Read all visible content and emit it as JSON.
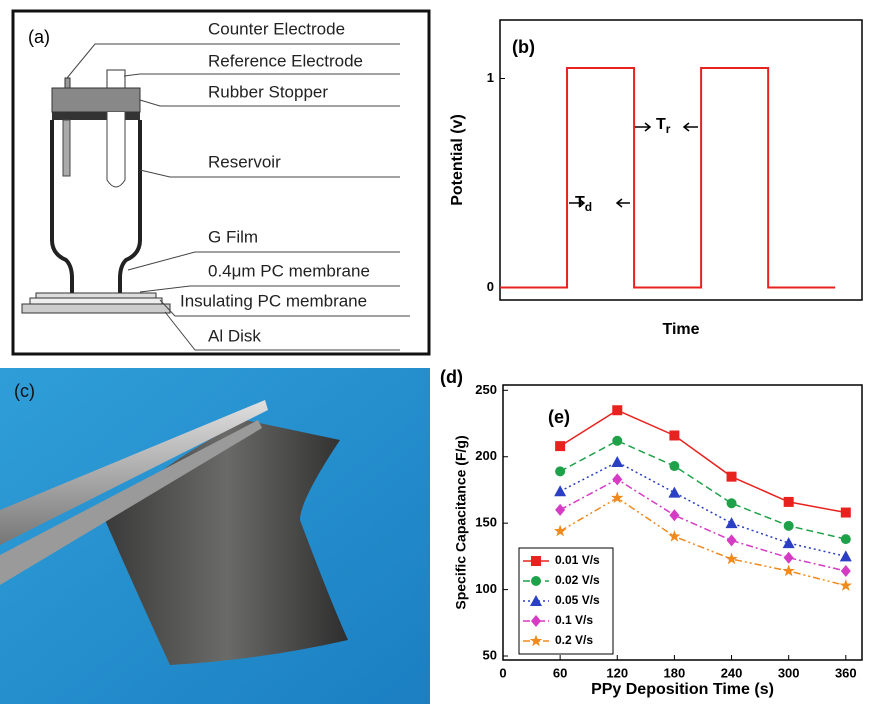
{
  "diagram": {
    "panel_label": "(a)",
    "labels": [
      "Counter Electrode",
      "Reference Electrode",
      "Rubber Stopper",
      "Reservoir",
      "G Film",
      "0.4μm PC membrane",
      "Insulating PC membrane",
      "Al Disk"
    ]
  },
  "photo": {
    "panel_label": "(c)"
  },
  "chart_data": [
    {
      "type": "line",
      "panel_label": "(b)",
      "xlabel": "Time",
      "ylabel": "Potential (v)",
      "xlim": [
        0,
        5.4
      ],
      "ylim": [
        -0.06,
        1.28
      ],
      "yticks": [
        0,
        1
      ],
      "annotations": [
        {
          "text": "T",
          "sub": "d"
        },
        {
          "text": "T",
          "sub": "r"
        }
      ],
      "x": [
        0,
        1,
        1,
        2,
        2,
        3,
        3,
        4,
        4,
        5
      ],
      "series": [
        {
          "color": "#e8231f",
          "values": [
            0,
            0,
            1.05,
            1.05,
            0,
            0,
            1.05,
            1.05,
            0,
            0
          ]
        }
      ]
    },
    {
      "type": "line",
      "panel_label": "(d)",
      "inset_label": "(e)",
      "xlabel": "PPy Deposition Time (s)",
      "ylabel": "Specific Capacitance (F/g)",
      "xlim": [
        0,
        377
      ],
      "ylim": [
        47,
        254
      ],
      "xticks": [
        0,
        60,
        120,
        180,
        240,
        300,
        360
      ],
      "yticks": [
        50,
        100,
        150,
        200,
        250
      ],
      "legend": "lower-left",
      "x": [
        60,
        120,
        180,
        240,
        300,
        360
      ],
      "series": [
        {
          "name": "0.01 V/s",
          "color": "#e8231f",
          "marker": "square",
          "linestyle": "solid",
          "values": [
            208,
            235,
            216,
            185,
            166,
            158
          ]
        },
        {
          "name": "0.02 V/s",
          "color": "#1fa14a",
          "marker": "circle",
          "linestyle": "dashed",
          "values": [
            189,
            212,
            193,
            165,
            148,
            138
          ]
        },
        {
          "name": "0.05 V/s",
          "color": "#2a3fc4",
          "marker": "triangle",
          "linestyle": "dotted",
          "values": [
            174,
            196,
            173,
            150,
            135,
            125
          ]
        },
        {
          "name": "0.1 V/s",
          "color": "#d63bc4",
          "marker": "diamond",
          "linestyle": "dashdot",
          "values": [
            160,
            183,
            156,
            137,
            124,
            114
          ]
        },
        {
          "name": "0.2 V/s",
          "color": "#f08a1c",
          "marker": "star",
          "linestyle": "dashdotdot",
          "values": [
            144,
            169,
            140,
            123,
            114,
            103
          ]
        }
      ]
    }
  ]
}
